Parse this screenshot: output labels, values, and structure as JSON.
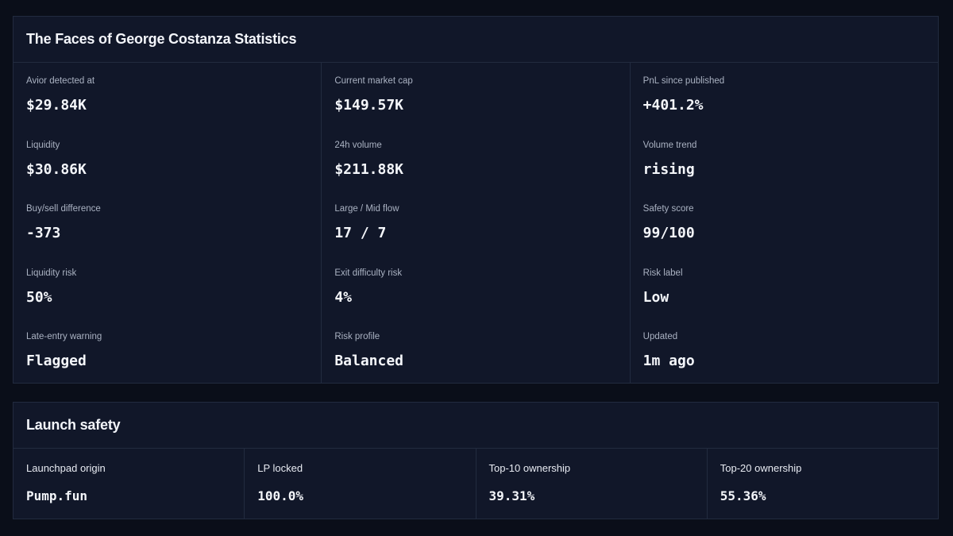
{
  "stats_panel": {
    "title": "The Faces of George Costanza Statistics",
    "columns": [
      [
        {
          "label": "Avior detected at",
          "value": "$29.84K"
        },
        {
          "label": "Liquidity",
          "value": "$30.86K"
        },
        {
          "label": "Buy/sell difference",
          "value": "-373"
        },
        {
          "label": "Liquidity risk",
          "value": "50%"
        },
        {
          "label": "Late-entry warning",
          "value": "Flagged"
        }
      ],
      [
        {
          "label": "Current market cap",
          "value": "$149.57K"
        },
        {
          "label": "24h volume",
          "value": "$211.88K"
        },
        {
          "label": "Large / Mid flow",
          "value": "17 / 7"
        },
        {
          "label": "Exit difficulty risk",
          "value": "4%"
        },
        {
          "label": "Risk profile",
          "value": "Balanced"
        }
      ],
      [
        {
          "label": "PnL since published",
          "value": "+401.2%"
        },
        {
          "label": "Volume trend",
          "value": "rising"
        },
        {
          "label": "Safety score",
          "value": "99/100"
        },
        {
          "label": "Risk label",
          "value": "Low"
        },
        {
          "label": "Updated",
          "value": "1m ago"
        }
      ]
    ]
  },
  "safety_panel": {
    "title": "Launch safety",
    "items": [
      {
        "label": "Launchpad origin",
        "value": "Pump.fun"
      },
      {
        "label": "LP locked",
        "value": "100.0%"
      },
      {
        "label": "Top-10 ownership",
        "value": "39.31%"
      },
      {
        "label": "Top-20 ownership",
        "value": "55.36%"
      }
    ]
  },
  "colors": {
    "background": "#0a0e19",
    "panel": "#111729",
    "border": "#222b3f",
    "label": "#aab2c2",
    "value": "#f4f6fa"
  }
}
